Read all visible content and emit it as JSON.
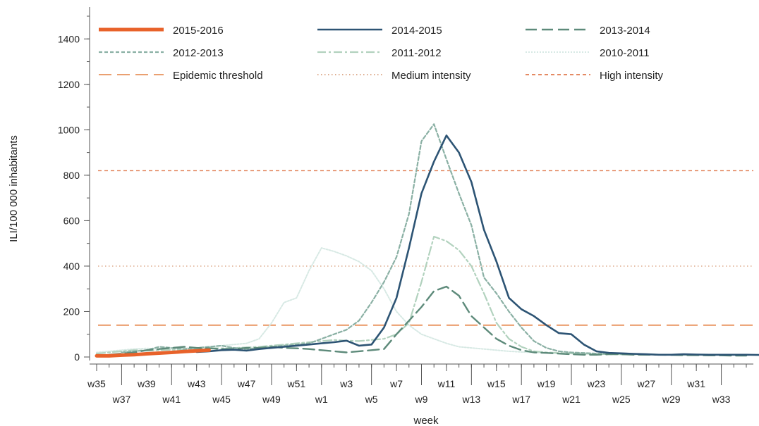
{
  "chart_data": {
    "type": "line",
    "xlabel": "week",
    "ylabel": "ILI/100 000 inhabitants",
    "ylim": [
      0,
      1500
    ],
    "y_ticks": [
      0,
      200,
      400,
      600,
      800,
      1000,
      1200,
      1400
    ],
    "x_tick_labels": [
      "w35",
      "w37",
      "w39",
      "w41",
      "w43",
      "w45",
      "w47",
      "w49",
      "w51",
      "w1",
      "w3",
      "w5",
      "w7",
      "w9",
      "w11",
      "w13",
      "w15",
      "w17",
      "w19",
      "w21",
      "w23",
      "w25",
      "w27",
      "w29",
      "w31",
      "w33"
    ],
    "legend_position": "top",
    "grid": false,
    "colors": {
      "s2015": "#e8622a",
      "s2014": "#2d5474",
      "s2013": "#5d8a7a",
      "s2012": "#8ab0a4",
      "s2011": "#b2d2be",
      "s2010": "#d7e9e4",
      "threshold": "#e8925d",
      "medium": "#d9a07e",
      "high": "#e07a4f"
    },
    "thresholds": [
      {
        "name": "Epidemic threshold",
        "value": 140,
        "style": "longdash"
      },
      {
        "name": "Medium intensity",
        "value": 400,
        "style": "dotted"
      },
      {
        "name": "High intensity",
        "value": 820,
        "style": "shortdash"
      }
    ],
    "series": [
      {
        "name": "2015-2016",
        "start_week_index": 0,
        "values": [
          5,
          5,
          8,
          10,
          14,
          17,
          20,
          24,
          27,
          30
        ]
      },
      {
        "name": "2014-2015",
        "start_week_index": 8,
        "values": [
          22,
          25,
          30,
          32,
          28,
          35,
          40,
          45,
          50,
          55,
          60,
          65,
          72,
          50,
          55,
          130,
          260,
          480,
          720,
          860,
          975,
          900,
          770,
          560,
          420,
          260,
          210,
          180,
          140,
          105,
          100,
          55,
          25,
          18,
          16,
          14,
          12,
          10,
          10,
          12,
          11,
          10,
          10,
          10,
          10,
          9,
          9,
          8,
          7,
          7,
          6,
          5,
          5
        ]
      },
      {
        "name": "2013-2014",
        "start_week_index": 1,
        "values": [
          10,
          15,
          20,
          30,
          35,
          40,
          45,
          40,
          38,
          35,
          35,
          40,
          40,
          45,
          40,
          38,
          35,
          30,
          25,
          20,
          25,
          30,
          35,
          100,
          160,
          220,
          290,
          310,
          270,
          180,
          130,
          80,
          50,
          30,
          20,
          18,
          15,
          12,
          10,
          10,
          12,
          12,
          10,
          10,
          10,
          9,
          8,
          8,
          7,
          7,
          6,
          6
        ]
      },
      {
        "name": "2012-2013",
        "start_week_index": 2,
        "values": [
          20,
          25,
          30,
          45,
          40,
          35,
          40,
          45,
          50,
          40,
          35,
          40,
          45,
          50,
          55,
          60,
          80,
          100,
          120,
          160,
          240,
          330,
          440,
          630,
          950,
          1025,
          870,
          720,
          580,
          350,
          280,
          200,
          130,
          70,
          40,
          25,
          20,
          18,
          15,
          14,
          12,
          12,
          12,
          10,
          10,
          10,
          10,
          10,
          10,
          10,
          10
        ]
      },
      {
        "name": "2011-2012",
        "start_week_index": 0,
        "values": [
          15,
          20,
          25,
          30,
          28,
          30,
          32,
          30,
          35,
          40,
          38,
          40,
          42,
          45,
          50,
          55,
          60,
          65,
          70,
          75,
          72,
          70,
          75,
          80,
          100,
          150,
          330,
          530,
          510,
          470,
          400,
          280,
          150,
          80,
          45,
          25,
          20,
          18,
          16,
          15,
          14,
          12,
          12,
          12,
          12,
          10,
          10,
          10,
          10,
          10,
          10,
          10,
          10
        ]
      },
      {
        "name": "2010-2011",
        "start_week_index": 0,
        "values": [
          20,
          25,
          30,
          35,
          38,
          35,
          36,
          38,
          40,
          45,
          50,
          55,
          60,
          80,
          150,
          240,
          260,
          380,
          480,
          465,
          445,
          420,
          380,
          300,
          200,
          140,
          100,
          80,
          60,
          45,
          40,
          35,
          30,
          25,
          22,
          20,
          18,
          16,
          15,
          14,
          12,
          12,
          12,
          12,
          10,
          10,
          10,
          10,
          10,
          10,
          10,
          10,
          10
        ]
      }
    ]
  }
}
